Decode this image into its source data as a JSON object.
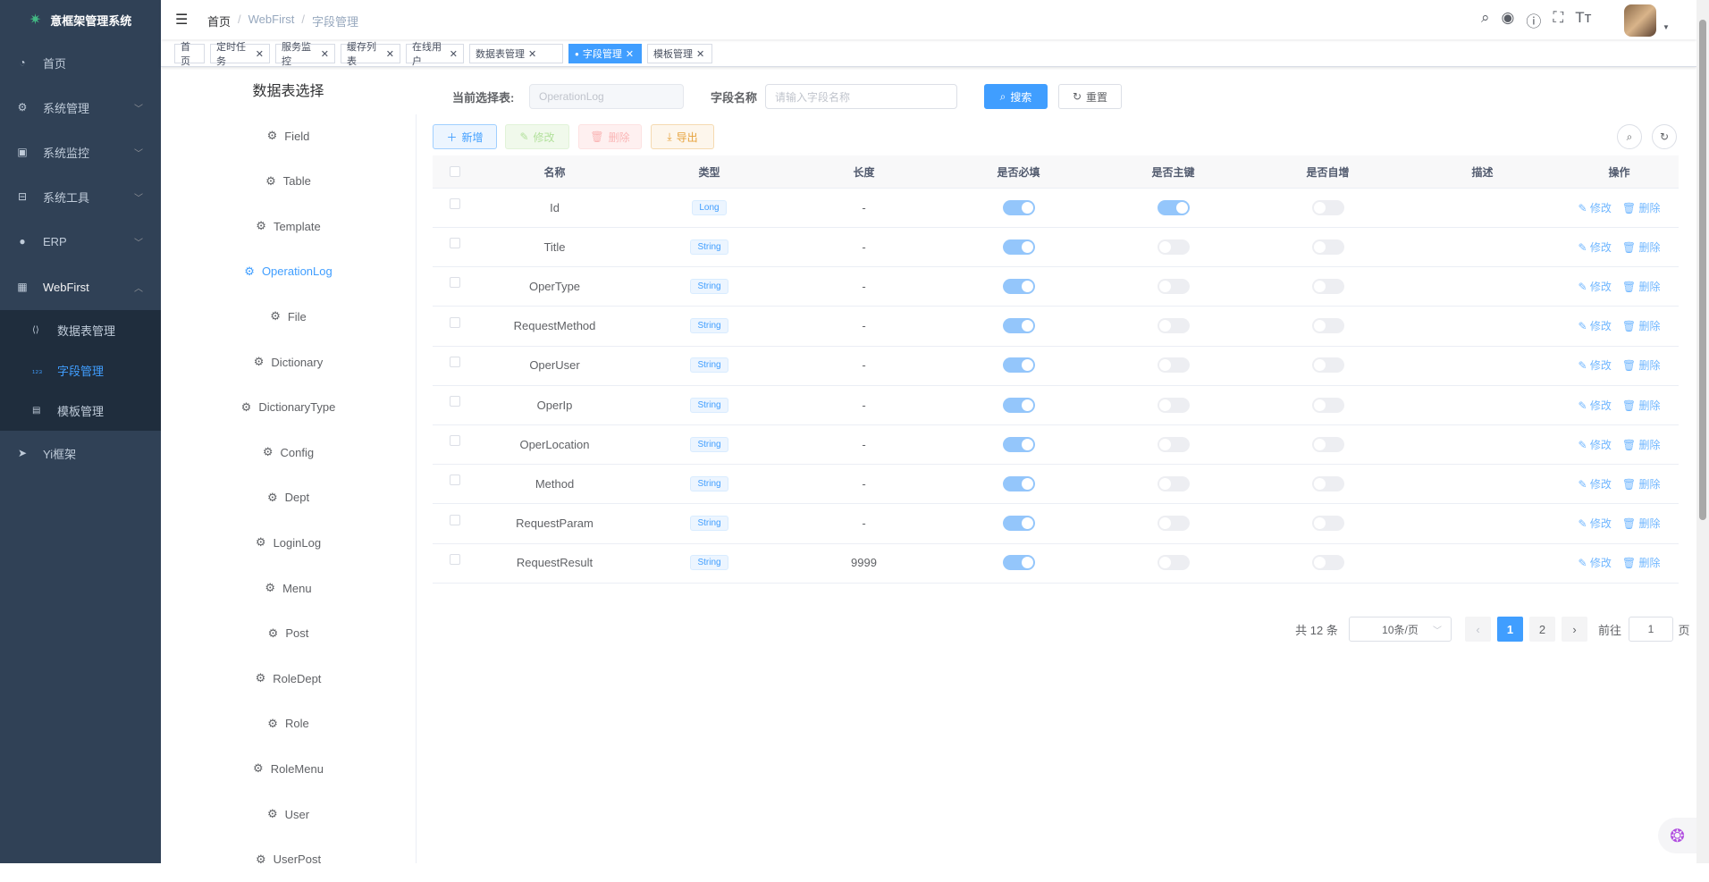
{
  "app": {
    "title": "意框架管理系统"
  },
  "sidebar": {
    "items": [
      {
        "label": "首页",
        "icon": "dashboard-icon"
      },
      {
        "label": "系统管理",
        "icon": "gear-icon",
        "arrow": "down"
      },
      {
        "label": "系统监控",
        "icon": "monitor-icon",
        "arrow": "down"
      },
      {
        "label": "系统工具",
        "icon": "toolbox-icon",
        "arrow": "down"
      },
      {
        "label": "ERP",
        "icon": "globe-icon",
        "arrow": "down"
      },
      {
        "label": "WebFirst",
        "icon": "table-icon",
        "arrow": "up"
      }
    ],
    "sub_items": [
      {
        "label": "数据表管理",
        "icon": "code-icon"
      },
      {
        "label": "字段管理",
        "icon": "number-icon",
        "active": true
      },
      {
        "label": "模板管理",
        "icon": "document-icon"
      }
    ],
    "after": {
      "label": "Yi框架",
      "icon": "paper-plane-icon"
    }
  },
  "breadcrumb": [
    "首页",
    "WebFirst",
    "字段管理"
  ],
  "tags": [
    {
      "label": "首页"
    },
    {
      "label": "定时任务",
      "close": true
    },
    {
      "label": "服务监控",
      "close": true
    },
    {
      "label": "缓存列表",
      "close": true
    },
    {
      "label": "在线用户",
      "close": true
    },
    {
      "label": "数据表管理",
      "close": true
    },
    {
      "label": "字段管理",
      "close": true,
      "active": true
    },
    {
      "label": "模板管理",
      "close": true
    }
  ],
  "left_panel": {
    "title": "数据表选择",
    "tables": [
      "Field",
      "Table",
      "Template",
      "OperationLog",
      "File",
      "Dictionary",
      "DictionaryType",
      "Config",
      "Dept",
      "LoginLog",
      "Menu",
      "Post",
      "RoleDept",
      "Role",
      "RoleMenu",
      "User",
      "UserPost"
    ],
    "selected": "OperationLog"
  },
  "search": {
    "table_label": "当前选择表:",
    "table_value": "OperationLog",
    "field_label": "字段名称",
    "field_placeholder": "请输入字段名称",
    "search_btn": "搜索",
    "reset_btn": "重置"
  },
  "toolbar": {
    "add": "新增",
    "edit": "修改",
    "delete": "删除",
    "export": "导出"
  },
  "table": {
    "columns": [
      "名称",
      "类型",
      "长度",
      "是否必填",
      "是否主键",
      "是否自增",
      "描述",
      "操作"
    ],
    "rows": [
      {
        "name": "Id",
        "type": "Long",
        "length": "-",
        "required": true,
        "primary": true,
        "identity": false
      },
      {
        "name": "Title",
        "type": "String",
        "length": "-",
        "required": true,
        "primary": false,
        "identity": false
      },
      {
        "name": "OperType",
        "type": "String",
        "length": "-",
        "required": true,
        "primary": false,
        "identity": false
      },
      {
        "name": "RequestMethod",
        "type": "String",
        "length": "-",
        "required": true,
        "primary": false,
        "identity": false
      },
      {
        "name": "OperUser",
        "type": "String",
        "length": "-",
        "required": true,
        "primary": false,
        "identity": false
      },
      {
        "name": "OperIp",
        "type": "String",
        "length": "-",
        "required": true,
        "primary": false,
        "identity": false
      },
      {
        "name": "OperLocation",
        "type": "String",
        "length": "-",
        "required": true,
        "primary": false,
        "identity": false
      },
      {
        "name": "Method",
        "type": "String",
        "length": "-",
        "required": true,
        "primary": false,
        "identity": false
      },
      {
        "name": "RequestParam",
        "type": "String",
        "length": "-",
        "required": true,
        "primary": false,
        "identity": false
      },
      {
        "name": "RequestResult",
        "type": "String",
        "length": "9999",
        "required": true,
        "primary": false,
        "identity": false
      }
    ],
    "edit_label": "修改",
    "delete_label": "删除"
  },
  "pagination": {
    "total": "共 12 条",
    "page_size": "10条/页",
    "pages": [
      "1",
      "2"
    ],
    "current": "1",
    "goto_label": "前往",
    "goto_value": "1",
    "page_suffix": "页"
  },
  "colors": {
    "sidebar": "#304156",
    "accent": "#409eff"
  }
}
